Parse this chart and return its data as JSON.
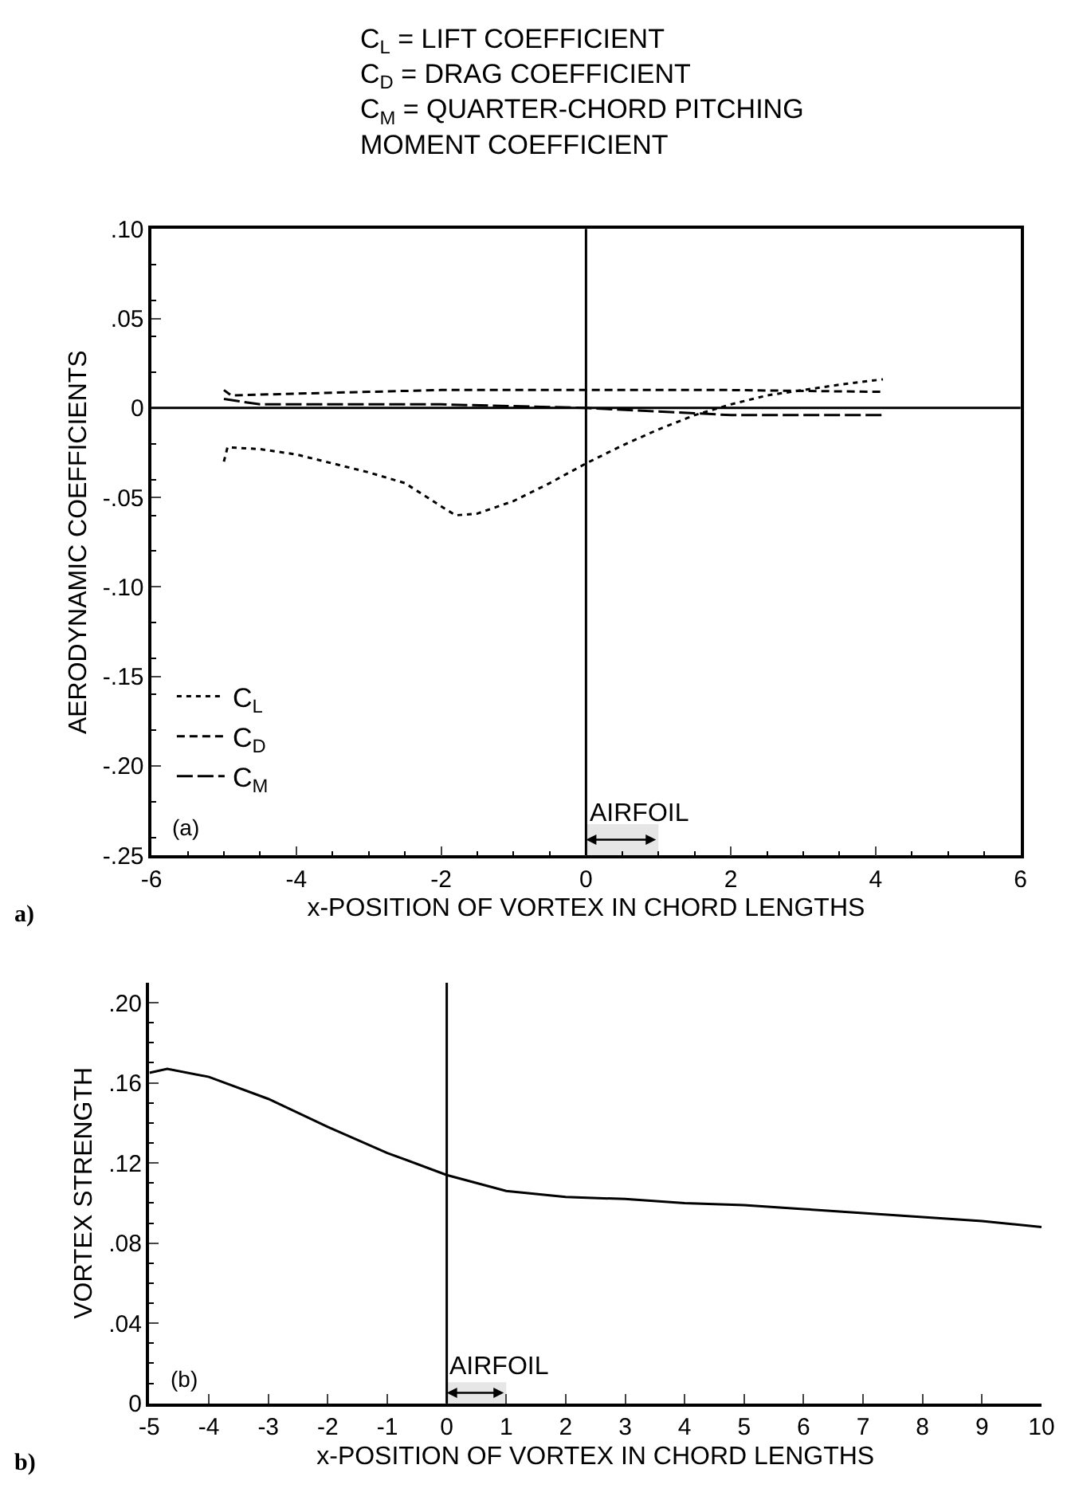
{
  "chart_data": [
    {
      "type": "line",
      "title": "C$_{L}$ = LIFT COEFFICIENT\nC$_{D}$ = DRAG COEFFICIENT\nC$_{M}$ = QUARTER-CHORD PITCHING\nMOMENT COEFFICIENT",
      "xlabel": "x-POSITION OF VORTEX IN CHORD LENGTHS",
      "ylabel": "AERODYNAMIC COEFFICIENTS",
      "xlim": [
        -6,
        6
      ],
      "xticks": [
        -6,
        -4,
        -2,
        0,
        2,
        4,
        6
      ],
      "ylim": [
        -0.25,
        0.1
      ],
      "yticks": [
        {
          "value": -0.25,
          "label": "-.25"
        },
        {
          "value": -0.2,
          "label": "-.20"
        },
        {
          "value": -0.15,
          "label": "-.15"
        },
        {
          "value": -0.1,
          "label": "-.10"
        },
        {
          "value": -0.05,
          "label": "-.05"
        },
        0,
        {
          "value": 0.05,
          "label": ".05"
        },
        {
          "value": 0.1,
          "label": ".10"
        }
      ],
      "grid": false,
      "legend": "bottom left",
      "series": [
        {
          "name": "C$_{L}$",
          "color": "#000000",
          "line_style": "dotted",
          "x": [
            -5,
            -4.95,
            -4.5,
            -4,
            -3.5,
            -3,
            -2.5,
            -2,
            -1.8,
            -1.5,
            -1,
            -0.5,
            0,
            0.5,
            1,
            1.5,
            2,
            2.5,
            3,
            3.5,
            4.1
          ],
          "values": [
            -0.03,
            -0.022,
            -0.023,
            -0.026,
            -0.031,
            -0.036,
            -0.042,
            -0.055,
            -0.06,
            -0.059,
            -0.052,
            -0.042,
            -0.031,
            -0.021,
            -0.012,
            -0.004,
            0.002,
            0.007,
            0.01,
            0.013,
            0.016
          ]
        },
        {
          "name": "C$_{D}$",
          "color": "#000000",
          "line_style": "dashed",
          "x": [
            -5,
            -4.9,
            -4,
            -2,
            0,
            2,
            4.1
          ],
          "values": [
            0.01,
            0.007,
            0.008,
            0.01,
            0.01,
            0.01,
            0.009
          ]
        },
        {
          "name": "C$_{M}$",
          "color": "#000000",
          "line_style": "longdash",
          "x": [
            -5,
            -4.5,
            -2,
            0,
            1.5,
            2,
            4.1
          ],
          "values": [
            0.005,
            0.002,
            0.002,
            0,
            -0.003,
            -0.004,
            -0.004
          ]
        }
      ],
      "ref_lines": [
        {
          "axis": "x",
          "value": 0
        },
        {
          "axis": "y",
          "value": 0
        }
      ],
      "bands": [
        {
          "axis": "x",
          "from": 0,
          "to": 1,
          "label": "AIRFOIL"
        }
      ],
      "annotations": [
        "(a)",
        "a)"
      ]
    },
    {
      "type": "line",
      "xlabel": "x-POSITION OF VORTEX IN CHORD LENGTHS",
      "ylabel": "VORTEX STRENGTH",
      "xlim": [
        -5,
        10
      ],
      "xticks": [
        -5,
        -4,
        -3,
        -2,
        -1,
        0,
        1,
        2,
        3,
        4,
        5,
        6,
        7,
        8,
        9,
        10
      ],
      "ylim": [
        0,
        0.21
      ],
      "yticks": [
        0,
        {
          "value": 0.04,
          "label": ".04"
        },
        {
          "value": 0.08,
          "label": ".08"
        },
        {
          "value": 0.12,
          "label": ".12"
        },
        {
          "value": 0.16,
          "label": ".16"
        },
        {
          "value": 0.2,
          "label": ".20"
        }
      ],
      "grid": false,
      "series": [
        {
          "color": "#000000",
          "line_style": "solid",
          "x": [
            -5,
            -4.7,
            -4,
            -3,
            -2,
            -1,
            0,
            1,
            2,
            3,
            4,
            5,
            6,
            7,
            8,
            9,
            10
          ],
          "values": [
            0.165,
            0.167,
            0.163,
            0.152,
            0.138,
            0.125,
            0.114,
            0.106,
            0.103,
            0.102,
            0.1,
            0.099,
            0.097,
            0.095,
            0.093,
            0.091,
            0.088
          ]
        }
      ],
      "ref_lines": [
        {
          "axis": "x",
          "value": 0
        }
      ],
      "bands": [
        {
          "axis": "x",
          "from": 0,
          "to": 1,
          "label": "AIRFOIL"
        }
      ],
      "annotations": [
        "(b)",
        "b)"
      ]
    }
  ]
}
